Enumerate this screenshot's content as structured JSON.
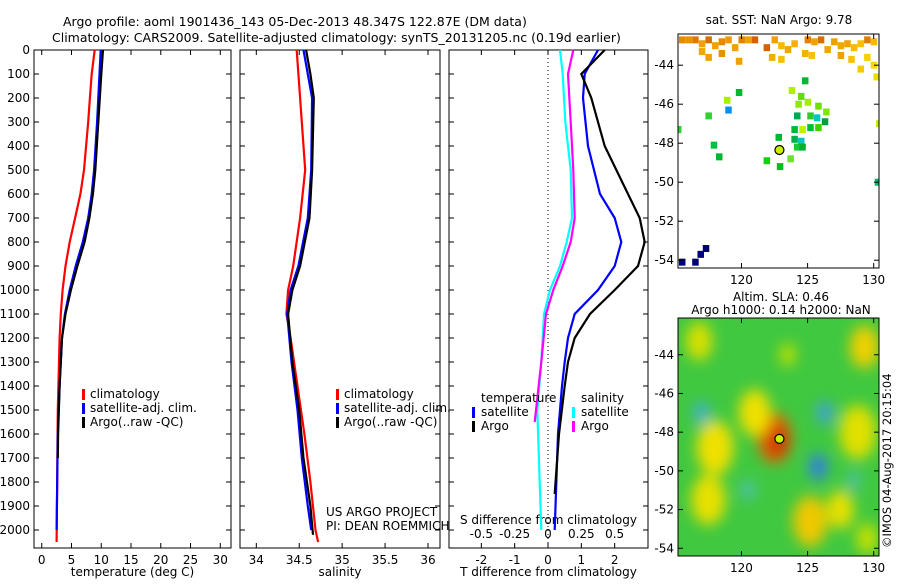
{
  "title": {
    "line1": "Argo profile: aoml 1901436_143 05-Dec-2013 48.347S 122.87E (DM data)",
    "line2": "Climatology: CARS2009. Satellite-adjusted climatology: synTS_20131205.nc (0.19d earlier)"
  },
  "credit": "©IMOS 04-Aug-2017 20:15:04",
  "colors": {
    "climatology": "#ff0000",
    "satellite": "#0000ff",
    "argo": "#000000",
    "sat_s": "#00ffff",
    "argo_s": "#ff00ff"
  },
  "chart_data": [
    {
      "type": "line",
      "name": "temperature",
      "xlabel": "temperature (deg C)",
      "xlim": [
        -1.3,
        31.8
      ],
      "xticks": [
        0,
        5,
        10,
        15,
        20,
        25,
        30
      ],
      "ylim": [
        0,
        2075
      ],
      "yticks": [
        0,
        100,
        200,
        300,
        400,
        500,
        600,
        700,
        800,
        900,
        1000,
        1100,
        1200,
        1300,
        1400,
        1500,
        1600,
        1700,
        1800,
        1900,
        2000
      ],
      "legend": [
        "climatology",
        "satellite-adj. clim.",
        "Argo(..raw -QC)"
      ],
      "series": [
        {
          "name": "climatology",
          "color": "#ff0000",
          "p": [
            0,
            100,
            200,
            300,
            500,
            600,
            700,
            800,
            900,
            1000,
            1100,
            1200,
            1500,
            1800,
            2050
          ],
          "v": [
            8.9,
            8.4,
            8.1,
            7.8,
            7.1,
            6.5,
            5.6,
            4.7,
            4.0,
            3.5,
            3.2,
            3.0,
            2.7,
            2.6,
            2.5
          ]
        },
        {
          "name": "satellite-adj. clim.",
          "color": "#0000ff",
          "p": [
            0,
            100,
            300,
            500,
            600,
            700,
            800,
            900,
            1000,
            1100,
            1200,
            1400,
            1600,
            1800,
            2000
          ],
          "v": [
            9.9,
            9.7,
            9.3,
            8.8,
            8.4,
            7.8,
            6.9,
            5.7,
            4.7,
            3.9,
            3.4,
            3.0,
            2.7,
            2.6,
            2.5
          ]
        },
        {
          "name": "Argo(..raw -QC)",
          "color": "#000000",
          "p": [
            0,
            100,
            300,
            500,
            600,
            700,
            800,
            900,
            1000,
            1100,
            1200,
            1400,
            1600,
            1700
          ],
          "v": [
            10.3,
            10.0,
            9.5,
            9.0,
            8.6,
            8.0,
            7.2,
            6.0,
            4.9,
            4.0,
            3.4,
            3.0,
            2.75,
            2.7
          ]
        }
      ]
    },
    {
      "type": "line",
      "name": "salinity",
      "xlabel": "salinity",
      "xlim": [
        33.81,
        36.14
      ],
      "xticks": [
        34,
        34.5,
        35,
        35.5,
        36
      ],
      "ylim": [
        0,
        2075
      ],
      "legend": [
        "climatology",
        "satellite-adj. clim.",
        "Argo(..raw -QC)"
      ],
      "notes": [
        "US ARGO PROJECT",
        "PI: DEAN ROEMMICH"
      ],
      "series": [
        {
          "name": "climatology",
          "color": "#ff0000",
          "p": [
            0,
            100,
            200,
            300,
            500,
            700,
            900,
            1000,
            1100,
            1200,
            1400,
            1600,
            1800,
            2000,
            2050
          ],
          "v": [
            34.47,
            34.49,
            34.51,
            34.53,
            34.57,
            34.51,
            34.43,
            34.37,
            34.35,
            34.4,
            34.48,
            34.56,
            34.63,
            34.69,
            34.72
          ]
        },
        {
          "name": "satellite-adj. clim.",
          "color": "#0000ff",
          "p": [
            0,
            100,
            200,
            500,
            700,
            900,
            1000,
            1100,
            1300,
            1500,
            1700,
            1900,
            2000
          ],
          "v": [
            34.55,
            34.6,
            34.65,
            34.64,
            34.6,
            34.49,
            34.4,
            34.36,
            34.41,
            34.48,
            34.53,
            34.6,
            34.64
          ]
        },
        {
          "name": "Argo(..raw -QC)",
          "color": "#000000",
          "p": [
            0,
            100,
            200,
            500,
            700,
            900,
            1000,
            1100,
            1300,
            1500,
            1700,
            1900,
            2020
          ],
          "v": [
            34.58,
            34.63,
            34.67,
            34.65,
            34.62,
            34.51,
            34.42,
            34.37,
            34.42,
            34.5,
            34.55,
            34.63,
            34.66
          ]
        }
      ]
    },
    {
      "type": "line",
      "name": "difference",
      "xlabel": "T difference from climatology",
      "x2label": "S difference from climatology",
      "xlim": [
        -2.97,
        3.0
      ],
      "xticks": [
        -2,
        -1,
        0,
        1,
        2
      ],
      "x2ticks": [
        -0.5,
        -0.25,
        0,
        0.25,
        0.5
      ],
      "x2ticklabels": [
        "-0.5",
        "-0.25",
        "0",
        "0.25",
        "0.5"
      ],
      "ylim": [
        0,
        2075
      ],
      "legend": {
        "temperature_title": "temperature",
        "salinity_title": "salinity",
        "entries": [
          "satellite",
          "Argo",
          "satellite",
          "Argo"
        ]
      },
      "series": [
        {
          "name": "T satellite",
          "color": "#0000ff",
          "axis": "T",
          "p": [
            0,
            100,
            200,
            400,
            600,
            700,
            800,
            900,
            1000,
            1100,
            1200,
            1300,
            1400,
            1600,
            2000
          ],
          "v": [
            1.5,
            1.1,
            1.05,
            1.2,
            1.56,
            2.0,
            2.2,
            2.0,
            1.5,
            0.8,
            0.6,
            0.5,
            0.42,
            0.3,
            0.2
          ]
        },
        {
          "name": "T Argo",
          "color": "#000000",
          "axis": "T",
          "p": [
            0,
            100,
            200,
            400,
            600,
            700,
            800,
            900,
            1000,
            1100,
            1200,
            1300,
            1400,
            1600,
            1850
          ],
          "v": [
            1.7,
            1.0,
            1.3,
            1.7,
            2.4,
            2.75,
            2.9,
            2.7,
            2.0,
            1.26,
            0.8,
            0.6,
            0.5,
            0.33,
            0.2
          ]
        },
        {
          "name": "S satellite",
          "color": "#00ffff",
          "axis": "S",
          "p": [
            0,
            100,
            300,
            500,
            700,
            800,
            900,
            1000,
            1100,
            1300,
            1500,
            2000
          ],
          "v": [
            0.09,
            0.11,
            0.13,
            0.17,
            0.18,
            0.14,
            0.09,
            0.015,
            -0.03,
            -0.05,
            -0.08,
            -0.05
          ]
        },
        {
          "name": "S Argo",
          "color": "#ff00ff",
          "axis": "S",
          "p": [
            0,
            100,
            300,
            500,
            700,
            800,
            900,
            1000,
            1100,
            1300,
            1550
          ],
          "v": [
            0.19,
            0.15,
            0.17,
            0.19,
            0.2,
            0.17,
            0.11,
            0.04,
            -0.015,
            -0.05,
            -0.1
          ]
        }
      ]
    },
    {
      "type": "heatmap",
      "name": "sst-map",
      "title": "sat. SST: NaN Argo: 9.78",
      "xlim": [
        115.2,
        130.4
      ],
      "ylim": [
        -54.4,
        -42.4
      ],
      "xticks": [
        120,
        125,
        130
      ],
      "yticks": [
        -44,
        -46,
        -48,
        -50,
        -52,
        -54
      ],
      "argo_position": [
        122.87,
        -48.347
      ],
      "cells": [
        [
          115.5,
          -42.7,
          "#e88a00"
        ],
        [
          116.0,
          -42.7,
          "#f09000"
        ],
        [
          116.5,
          -42.7,
          "#e07800"
        ],
        [
          117.0,
          -42.9,
          "#f0a000"
        ],
        [
          117.5,
          -42.7,
          "#d87000"
        ],
        [
          118.0,
          -43.0,
          "#f0a000"
        ],
        [
          118.5,
          -42.8,
          "#e88800"
        ],
        [
          119.0,
          -42.7,
          "#f09800"
        ],
        [
          119.5,
          -43.1,
          "#f0a000"
        ],
        [
          120.0,
          -42.7,
          "#e88000"
        ],
        [
          120.5,
          -42.7,
          "#f0a000"
        ],
        [
          121.0,
          -42.7,
          "#d86000"
        ],
        [
          117.0,
          -43.3,
          "#f0a800"
        ],
        [
          117.5,
          -43.6,
          "#f0a000"
        ],
        [
          118.5,
          -43.4,
          "#e89000"
        ],
        [
          119.8,
          -43.8,
          "#f0a000"
        ],
        [
          121.9,
          -43.1,
          "#d86000"
        ],
        [
          122.5,
          -42.7,
          "#f0a000"
        ],
        [
          123.0,
          -43.0,
          "#f8b800"
        ],
        [
          123.5,
          -43.2,
          "#f0a800"
        ],
        [
          124.0,
          -42.9,
          "#f8b000"
        ],
        [
          122.3,
          -43.6,
          "#f0b000"
        ],
        [
          123.0,
          -43.7,
          "#f8c000"
        ],
        [
          125.0,
          -42.7,
          "#e88000"
        ],
        [
          125.5,
          -42.8,
          "#f0a000"
        ],
        [
          126.0,
          -42.7,
          "#d87000"
        ],
        [
          126.5,
          -43.2,
          "#f0a800"
        ],
        [
          125.3,
          -43.5,
          "#f8c000"
        ],
        [
          124.8,
          -43.4,
          "#f8b000"
        ],
        [
          127.0,
          -42.8,
          "#f0a000"
        ],
        [
          127.5,
          -43.0,
          "#f0a800"
        ],
        [
          128.0,
          -42.9,
          "#f0a000"
        ],
        [
          128.5,
          -43.1,
          "#f8b800"
        ],
        [
          127.5,
          -43.5,
          "#f0a000"
        ],
        [
          128.3,
          -43.7,
          "#f8c000"
        ],
        [
          129.0,
          -42.9,
          "#f8c000"
        ],
        [
          129.5,
          -42.7,
          "#e08000"
        ],
        [
          130.0,
          -42.8,
          "#f8b800"
        ],
        [
          129.5,
          -43.6,
          "#f8d000"
        ],
        [
          130.0,
          -44.0,
          "#f8d800"
        ],
        [
          130.2,
          -44.6,
          "#e8e000"
        ],
        [
          129.0,
          -44.2,
          "#f8c800"
        ],
        [
          119.8,
          -45.4,
          "#00b830"
        ],
        [
          118.9,
          -45.8,
          "#a8f000"
        ],
        [
          119.0,
          -46.3,
          "#0090f0"
        ],
        [
          117.5,
          -46.6,
          "#30d030"
        ],
        [
          115.2,
          -47.3,
          "#30d030"
        ],
        [
          124.8,
          -44.8,
          "#00b830"
        ],
        [
          123.8,
          -45.3,
          "#b0f000"
        ],
        [
          124.5,
          -45.6,
          "#60e000"
        ],
        [
          125.0,
          -45.9,
          "#a0f000"
        ],
        [
          124.3,
          -46.0,
          "#90e800"
        ],
        [
          125.8,
          -46.1,
          "#70e000"
        ],
        [
          126.4,
          -46.4,
          "#80e800"
        ],
        [
          124.2,
          -46.6,
          "#00a850"
        ],
        [
          125.2,
          -46.6,
          "#30c830"
        ],
        [
          125.7,
          -46.7,
          "#00c8c0"
        ],
        [
          126.3,
          -46.9,
          "#00a040"
        ],
        [
          124.0,
          -47.3,
          "#00b840"
        ],
        [
          124.6,
          -47.3,
          "#c0f000"
        ],
        [
          125.2,
          -47.2,
          "#00c030"
        ],
        [
          125.8,
          -47.2,
          "#40d000"
        ],
        [
          124.0,
          -47.8,
          "#00b050"
        ],
        [
          124.5,
          -47.9,
          "#00c8c0"
        ],
        [
          124.2,
          -48.2,
          "#20c830"
        ],
        [
          124.6,
          -48.2,
          "#00b030"
        ],
        [
          122.8,
          -47.7,
          "#00b830"
        ],
        [
          117.9,
          -48.1,
          "#00c040"
        ],
        [
          118.3,
          -48.7,
          "#00b830"
        ],
        [
          121.9,
          -48.9,
          "#10d010"
        ],
        [
          122.9,
          -49.2,
          "#00c020"
        ],
        [
          123.7,
          -48.8,
          "#70e030"
        ],
        [
          130.3,
          -50.0,
          "#00b870"
        ],
        [
          130.4,
          -47.0,
          "#c0f000"
        ],
        [
          117.3,
          -53.4,
          "#000070"
        ],
        [
          116.9,
          -53.7,
          "#000080"
        ],
        [
          116.5,
          -54.1,
          "#000078"
        ],
        [
          115.5,
          -54.1,
          "#000080"
        ]
      ]
    },
    {
      "type": "heatmap",
      "name": "altimetry-map",
      "title_line1": "Altim. SLA: 0.46",
      "title_line2": "Argo h1000: 0.14 h2000: NaN",
      "xlim": [
        115.2,
        130.4
      ],
      "ylim": [
        -54.4,
        -42.1
      ],
      "xticks": [
        120,
        125,
        130
      ],
      "yticks": [
        -44,
        -46,
        -48,
        -50,
        -52,
        -54
      ],
      "argo_position": [
        122.87,
        -48.347
      ],
      "background": "#40c840",
      "blobs": [
        [
          122.5,
          -48.3,
          1.3,
          "#e06000"
        ],
        [
          122.8,
          -48.5,
          0.7,
          "#d03000"
        ],
        [
          121.0,
          -47.0,
          1.2,
          "#f0e000"
        ],
        [
          118.0,
          -48.8,
          1.4,
          "#f0e000"
        ],
        [
          117.5,
          -51.5,
          1.3,
          "#e8e000"
        ],
        [
          125.2,
          -52.6,
          1.3,
          "#f0c800"
        ],
        [
          127.5,
          -52.0,
          1.0,
          "#e8e000"
        ],
        [
          128.8,
          -48.0,
          1.4,
          "#e0e000"
        ],
        [
          129.3,
          -43.6,
          1.1,
          "#f0d000"
        ],
        [
          116.8,
          -43.3,
          1.0,
          "#d8e000"
        ],
        [
          126.3,
          -47.0,
          0.6,
          "#40a0e0"
        ],
        [
          125.8,
          -49.8,
          0.7,
          "#3080e0"
        ],
        [
          117.0,
          -47.0,
          0.6,
          "#40b0d0"
        ],
        [
          120.5,
          -51.0,
          0.5,
          "#50c0c0"
        ],
        [
          128.5,
          -50.5,
          0.5,
          "#50c0b0"
        ],
        [
          123.5,
          -44.0,
          0.6,
          "#c0e000"
        ],
        [
          129.5,
          -53.5,
          0.8,
          "#c8e000"
        ]
      ]
    }
  ]
}
